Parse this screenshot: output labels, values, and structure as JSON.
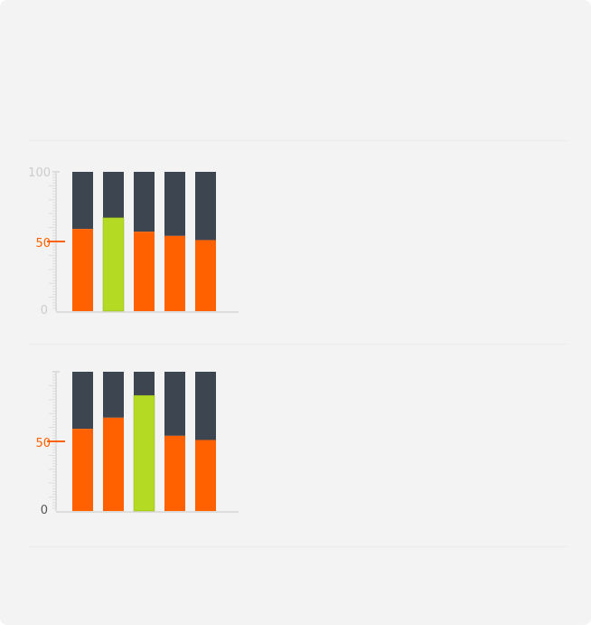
{
  "colors": {
    "background": "#f3f3f3",
    "divider": "#e9e9e9",
    "bar_remainder": "#3d4550",
    "bar_value": "#ff6000",
    "bar_highlight": "#b4da24",
    "axis": "#dddddd",
    "tick_label_muted": "#cccccc",
    "tick_label_dark": "#555555",
    "tick_label_accent": "#ff6000"
  },
  "chart_data": [
    {
      "type": "bar",
      "stacked": true,
      "ylim": [
        0,
        100
      ],
      "grid": false,
      "y_ticks": [
        "0",
        "50",
        "100"
      ],
      "highlight_index": 1,
      "values": [
        59,
        67,
        57,
        54,
        51
      ]
    },
    {
      "type": "bar",
      "stacked": true,
      "ylim": [
        0,
        100
      ],
      "grid": false,
      "y_ticks": [
        "0",
        "50"
      ],
      "highlight_index": 2,
      "values": [
        59,
        67,
        83,
        54,
        51
      ]
    }
  ]
}
